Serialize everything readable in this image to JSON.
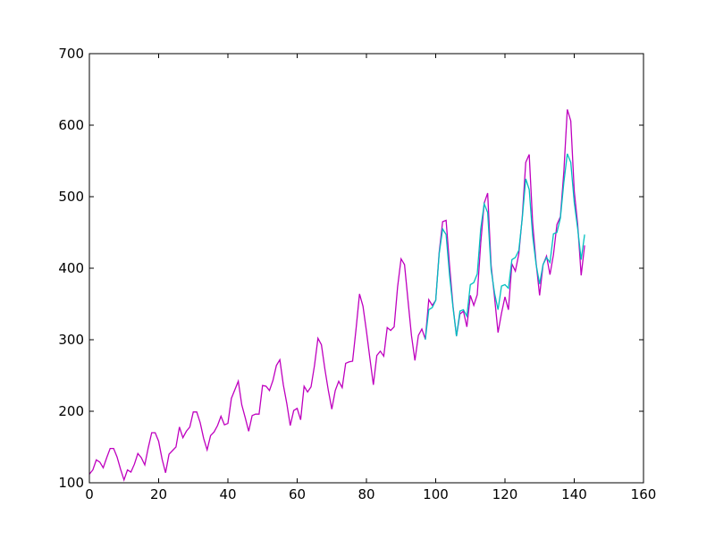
{
  "chart_data": {
    "type": "line",
    "xlim": [
      0,
      160
    ],
    "xticks": [
      0,
      20,
      40,
      60,
      80,
      100,
      120,
      140,
      160
    ],
    "ylim": [
      100,
      700
    ],
    "yticks": [
      100,
      200,
      300,
      400,
      500,
      600,
      700
    ],
    "grid": false,
    "series": [
      {
        "color": "#bf00bf",
        "x": [
          0,
          1,
          2,
          3,
          4,
          5,
          6,
          7,
          8,
          9,
          10,
          11,
          12,
          13,
          14,
          15,
          16,
          17,
          18,
          19,
          20,
          21,
          22,
          23,
          24,
          25,
          26,
          27,
          28,
          29,
          30,
          31,
          32,
          33,
          34,
          35,
          36,
          37,
          38,
          39,
          40,
          41,
          42,
          43,
          44,
          45,
          46,
          47,
          48,
          49,
          50,
          51,
          52,
          53,
          54,
          55,
          56,
          57,
          58,
          59,
          60,
          61,
          62,
          63,
          64,
          65,
          66,
          67,
          68,
          69,
          70,
          71,
          72,
          73,
          74,
          75,
          76,
          77,
          78,
          79,
          80,
          81,
          82,
          83,
          84,
          85,
          86,
          87,
          88,
          89,
          90,
          91,
          92,
          93,
          94,
          95,
          96,
          97,
          98,
          99,
          100,
          101,
          102,
          103,
          104,
          105,
          106,
          107,
          108,
          109,
          110,
          111,
          112,
          113,
          114,
          115,
          116,
          117,
          118,
          119,
          120,
          121,
          122,
          123,
          124,
          125,
          126,
          127,
          128,
          129,
          130,
          131,
          132,
          133,
          134,
          135,
          136,
          137,
          138,
          139,
          140,
          141,
          142,
          143
        ],
        "values": [
          112,
          118,
          132,
          129,
          121,
          135,
          148,
          148,
          136,
          119,
          104,
          118,
          115,
          126,
          141,
          135,
          125,
          149,
          170,
          170,
          158,
          133,
          114,
          140,
          145,
          150,
          178,
          163,
          172,
          178,
          199,
          199,
          184,
          162,
          146,
          166,
          171,
          180,
          193,
          181,
          183,
          218,
          230,
          242,
          209,
          191,
          172,
          194,
          196,
          196,
          236,
          235,
          229,
          243,
          264,
          272,
          237,
          211,
          180,
          201,
          204,
          188,
          235,
          227,
          234,
          264,
          302,
          293,
          259,
          229,
          203,
          229,
          242,
          233,
          267,
          269,
          270,
          315,
          364,
          347,
          312,
          274,
          237,
          278,
          284,
          277,
          317,
          313,
          318,
          374,
          413,
          405,
          355,
          306,
          271,
          306,
          315,
          301,
          356,
          348,
          355,
          422,
          465,
          467,
          404,
          347,
          305,
          336,
          340,
          318,
          362,
          348,
          363,
          435,
          491,
          505,
          404,
          359,
          310,
          337,
          360,
          342,
          406,
          396,
          420,
          472,
          548,
          559,
          463,
          407,
          362,
          405,
          417,
          391,
          419,
          461,
          472,
          535,
          622,
          606,
          508,
          461,
          390,
          432
        ]
      },
      {
        "color": "#00bfbf",
        "x": [
          97,
          98,
          99,
          100,
          101,
          102,
          103,
          104,
          105,
          106,
          107,
          108,
          109,
          110,
          111,
          112,
          113,
          114,
          115,
          116,
          117,
          118,
          119,
          120,
          121,
          122,
          123,
          124,
          125,
          126,
          127,
          128,
          129,
          130,
          131,
          132,
          133,
          134,
          135,
          136,
          137,
          138,
          139,
          140,
          141,
          142,
          143
        ],
        "values": [
          300,
          342,
          345,
          355,
          420,
          455,
          447,
          390,
          345,
          305,
          340,
          342,
          333,
          377,
          380,
          392,
          455,
          490,
          478,
          398,
          365,
          342,
          375,
          377,
          372,
          412,
          415,
          425,
          470,
          525,
          510,
          445,
          405,
          378,
          405,
          415,
          408,
          448,
          450,
          470,
          520,
          560,
          548,
          492,
          455,
          412,
          447
        ]
      }
    ]
  }
}
